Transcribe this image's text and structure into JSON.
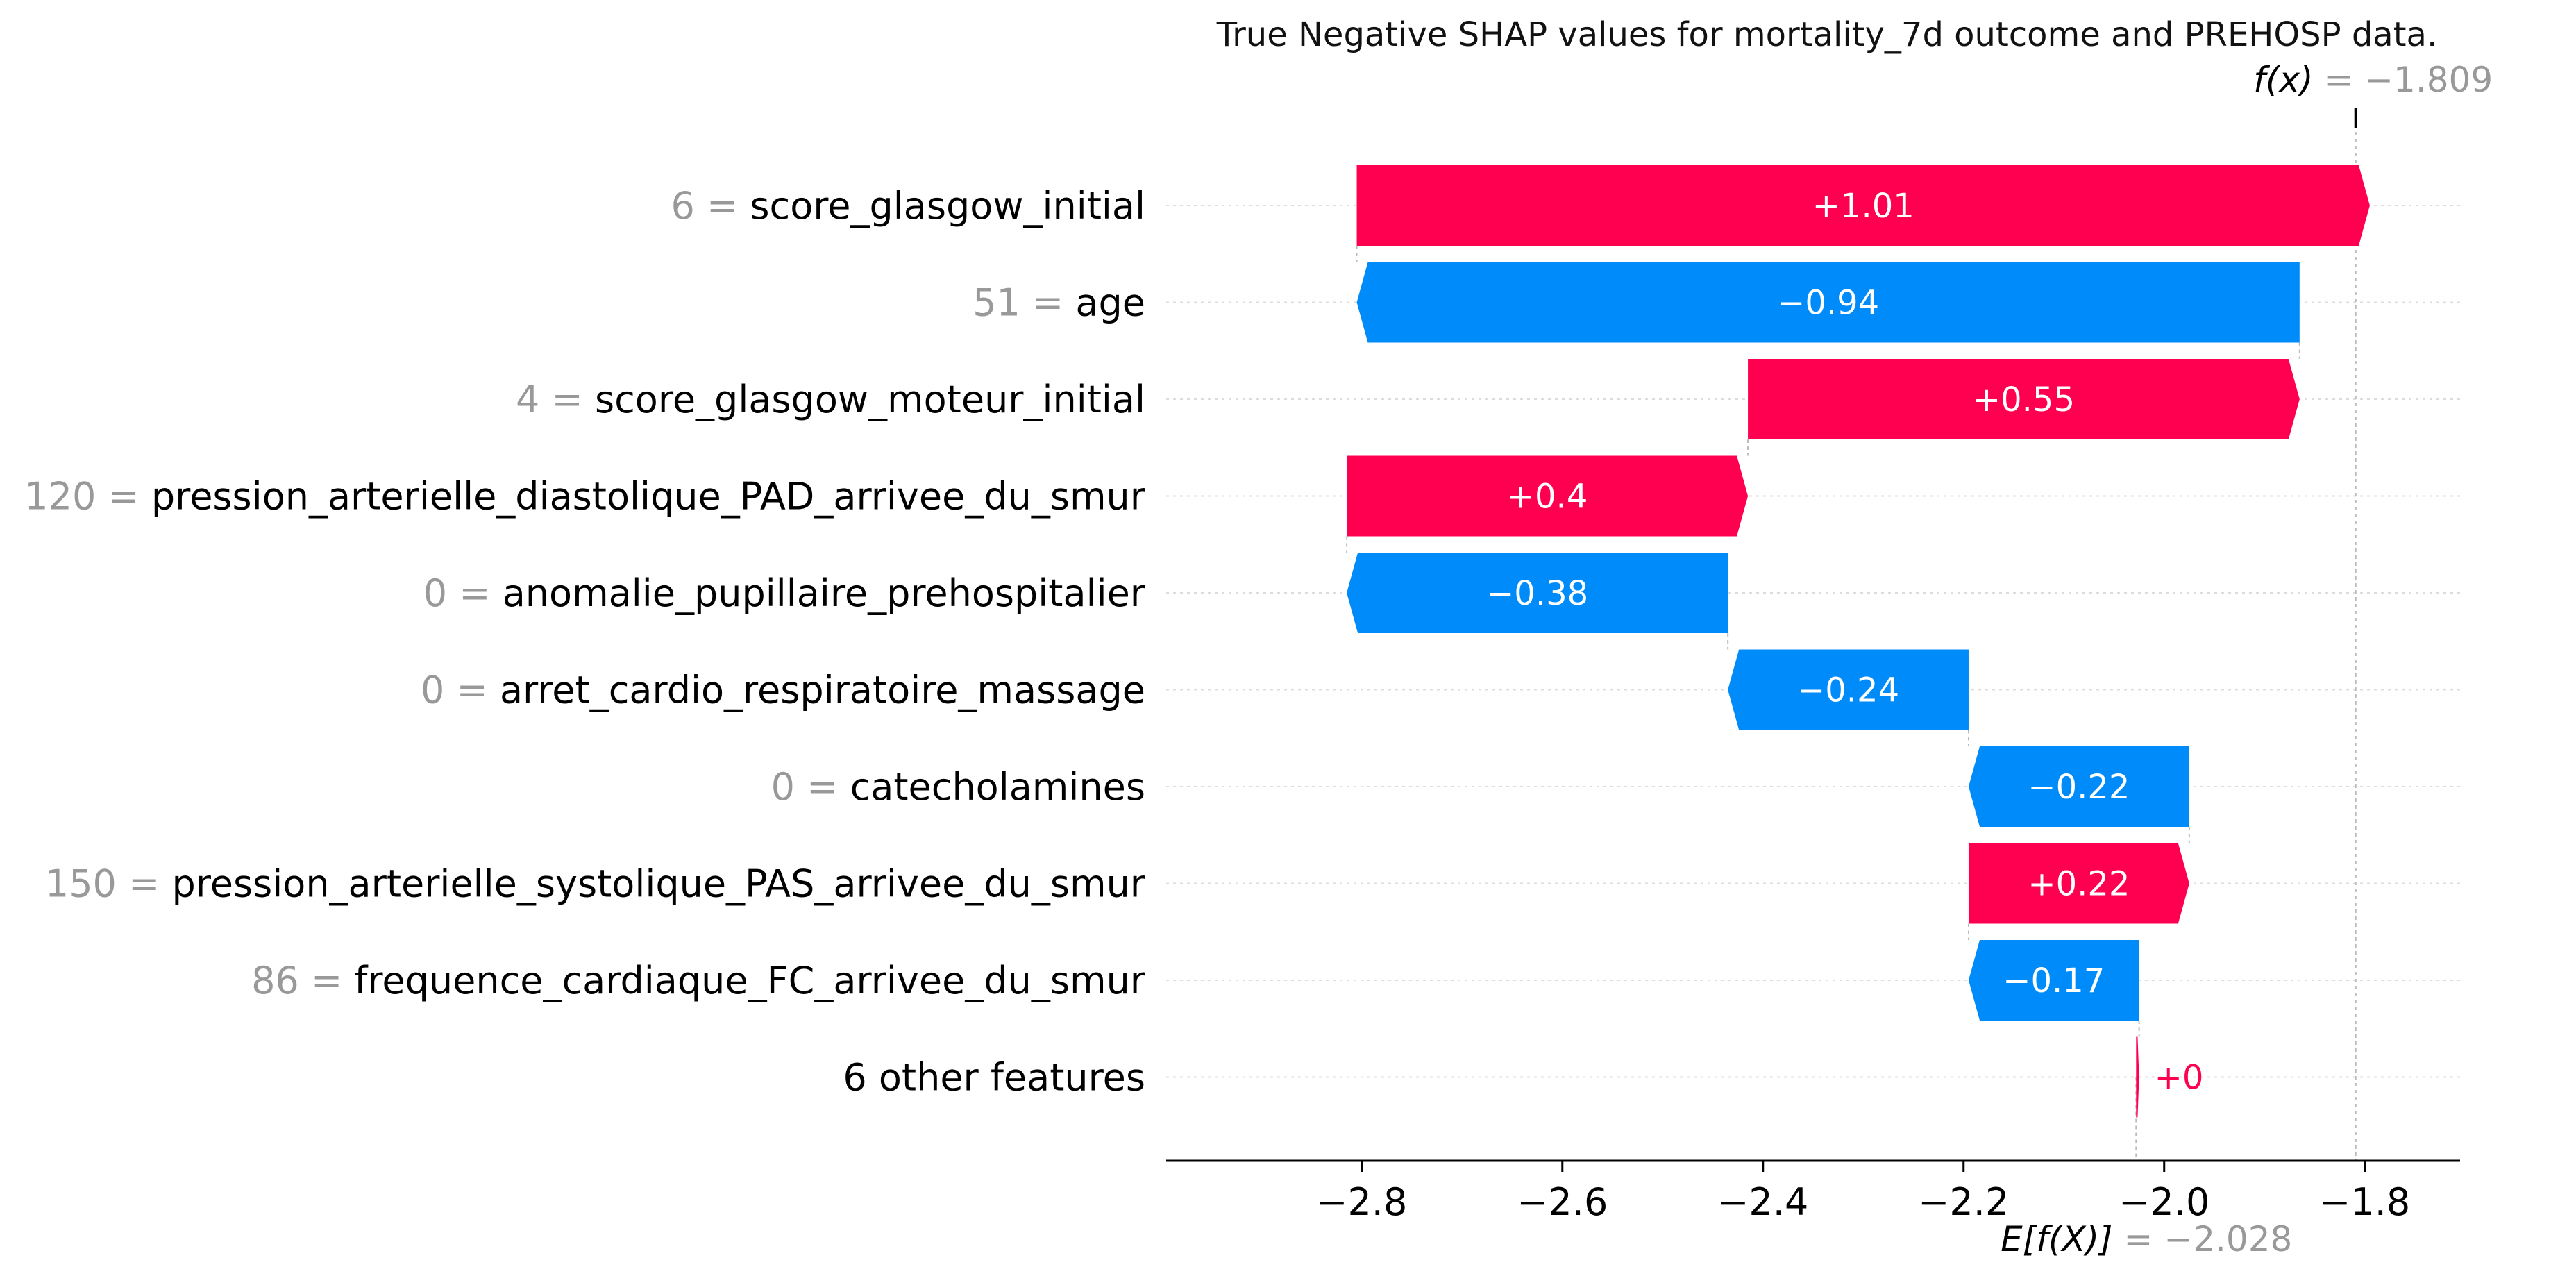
{
  "chart_data": {
    "type": "waterfall",
    "title": "True Negative SHAP values for mortality_7d outcome and PREHOSP data.",
    "base_value": -2.028,
    "base_label": "E[f(X)]",
    "base_value_text": "= −2.028",
    "output_value": -1.809,
    "output_label": "f(x)",
    "output_value_text": "= −1.809",
    "xlim": [
      -2.995,
      -1.705
    ],
    "ticks": [
      -2.8,
      -2.6,
      -2.4,
      -2.2,
      -2.0,
      -1.8
    ],
    "tick_labels": [
      "−2.8",
      "−2.6",
      "−2.4",
      "−2.2",
      "−2.0",
      "−1.8"
    ],
    "colors": {
      "positive": "#ff0051",
      "negative": "#008bfb",
      "grid": "#cccccc",
      "axis": "#000000"
    },
    "features": [
      {
        "value": "6 =",
        "name": "score_glasgow_initial",
        "contribution": 1.01,
        "label": "+1.01"
      },
      {
        "value": "51 =",
        "name": "age",
        "contribution": -0.94,
        "label": "−0.94"
      },
      {
        "value": "4 =",
        "name": "score_glasgow_moteur_initial",
        "contribution": 0.55,
        "label": "+0.55"
      },
      {
        "value": "120 =",
        "name": "pression_arterielle_diastolique_PAD_arrivee_du_smur",
        "contribution": 0.4,
        "label": "+0.4"
      },
      {
        "value": "0 =",
        "name": "anomalie_pupillaire_prehospitalier",
        "contribution": -0.38,
        "label": "−0.38"
      },
      {
        "value": "0 =",
        "name": "arret_cardio_respiratoire_massage",
        "contribution": -0.24,
        "label": "−0.24"
      },
      {
        "value": "0 =",
        "name": "catecholamines",
        "contribution": -0.22,
        "label": "−0.22"
      },
      {
        "value": "150 =",
        "name": "pression_arterielle_systolique_PAS_arrivee_du_smur",
        "contribution": 0.22,
        "label": "+0.22"
      },
      {
        "value": "86 =",
        "name": "frequence_cardiaque_FC_arrivee_du_smur",
        "contribution": -0.17,
        "label": "−0.17"
      },
      {
        "value": "",
        "name": "6 other features",
        "contribution": 0.003,
        "label": "+0"
      }
    ]
  }
}
